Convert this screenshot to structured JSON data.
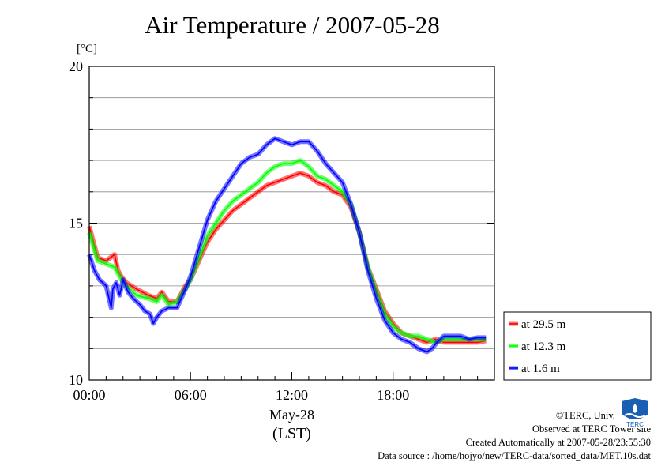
{
  "chart_data": {
    "type": "line",
    "title": "Air Temperature / 2007-05-28",
    "unit_label": "[°C]",
    "ylim": [
      10,
      20
    ],
    "xlim": [
      0,
      24
    ],
    "y_ticks": [
      10,
      15,
      20
    ],
    "y_minor_step": 1,
    "x_ticks": [
      {
        "x": 0,
        "label": "00:00"
      },
      {
        "x": 6,
        "label": "06:00"
      },
      {
        "x": 12,
        "label": "12:00"
      },
      {
        "x": 18,
        "label": "18:00"
      }
    ],
    "x_date_label": "May-28",
    "x_axis_label": "(LST)",
    "grid": "horizontal at every 1 °C",
    "legend_position": "right",
    "series": [
      {
        "name": "at 29.5 m",
        "color": "#ff0000",
        "x": [
          0,
          0.5,
          1,
          1.5,
          1.7,
          1.9,
          2.2,
          2.8,
          3.5,
          4,
          4.3,
          4.7,
          5.2,
          5.7,
          6,
          6.5,
          7,
          7.5,
          8,
          8.5,
          9,
          9.5,
          10,
          10.5,
          11,
          11.5,
          12,
          12.5,
          13,
          13.5,
          14,
          14.5,
          15,
          15.5,
          16,
          16.5,
          17,
          17.5,
          18,
          18.5,
          19,
          19.5,
          20,
          20.5,
          21,
          21.5,
          22,
          22.5,
          23,
          23.5
        ],
        "y": [
          14.9,
          13.9,
          13.8,
          14.0,
          13.5,
          13.3,
          13.1,
          12.9,
          12.7,
          12.6,
          12.8,
          12.5,
          12.5,
          13.0,
          13.2,
          13.8,
          14.4,
          14.8,
          15.1,
          15.4,
          15.6,
          15.8,
          16.0,
          16.2,
          16.3,
          16.4,
          16.5,
          16.6,
          16.5,
          16.3,
          16.2,
          16.0,
          15.9,
          15.5,
          14.7,
          13.6,
          12.9,
          12.2,
          11.8,
          11.5,
          11.4,
          11.3,
          11.2,
          11.3,
          11.2,
          11.2,
          11.2,
          11.2,
          11.2,
          11.25
        ]
      },
      {
        "name": "at 12.3 m",
        "color": "#00ff00",
        "x": [
          0,
          0.5,
          1,
          1.5,
          1.7,
          1.9,
          2.2,
          2.8,
          3.5,
          4,
          4.3,
          4.7,
          5.2,
          5.7,
          6,
          6.5,
          7,
          7.5,
          8,
          8.5,
          9,
          9.5,
          10,
          10.5,
          11,
          11.5,
          12,
          12.5,
          13,
          13.5,
          14,
          14.5,
          15,
          15.5,
          16,
          16.5,
          17,
          17.5,
          18,
          18.5,
          19,
          19.5,
          20,
          20.5,
          21,
          21.5,
          22,
          22.5,
          23,
          23.5
        ],
        "y": [
          14.7,
          13.8,
          13.7,
          13.6,
          13.4,
          13.2,
          13.0,
          12.7,
          12.6,
          12.5,
          12.7,
          12.4,
          12.5,
          12.9,
          13.2,
          13.9,
          14.6,
          15.0,
          15.4,
          15.7,
          15.9,
          16.1,
          16.3,
          16.6,
          16.8,
          16.9,
          16.9,
          17.0,
          16.8,
          16.5,
          16.4,
          16.2,
          16.0,
          15.6,
          14.7,
          13.6,
          12.8,
          12.1,
          11.7,
          11.5,
          11.4,
          11.4,
          11.3,
          11.2,
          11.3,
          11.3,
          11.3,
          11.3,
          11.3,
          11.3
        ]
      },
      {
        "name": "at 1.6 m",
        "color": "#0000ff",
        "x": [
          0,
          0.3,
          0.6,
          1,
          1.3,
          1.4,
          1.6,
          1.8,
          2,
          2.3,
          2.6,
          3,
          3.3,
          3.6,
          3.8,
          4,
          4.3,
          4.7,
          5.2,
          5.7,
          6,
          6.5,
          7,
          7.5,
          8,
          8.5,
          9,
          9.5,
          10,
          10.5,
          11,
          11.5,
          12,
          12.5,
          13,
          13.5,
          14,
          14.5,
          15,
          15.5,
          16,
          16.5,
          17,
          17.5,
          18,
          18.5,
          19,
          19.5,
          20,
          20.3,
          20.6,
          21,
          21.5,
          22,
          22.5,
          23,
          23.5
        ],
        "y": [
          14.0,
          13.5,
          13.2,
          13.0,
          12.3,
          12.9,
          13.1,
          12.7,
          13.2,
          12.8,
          12.6,
          12.4,
          12.2,
          12.1,
          11.8,
          12.0,
          12.2,
          12.3,
          12.3,
          12.9,
          13.3,
          14.2,
          15.1,
          15.7,
          16.1,
          16.5,
          16.9,
          17.1,
          17.2,
          17.5,
          17.7,
          17.6,
          17.5,
          17.6,
          17.6,
          17.3,
          16.9,
          16.6,
          16.3,
          15.6,
          14.7,
          13.5,
          12.6,
          11.9,
          11.5,
          11.3,
          11.2,
          11.0,
          10.9,
          11.0,
          11.2,
          11.4,
          11.4,
          11.4,
          11.3,
          11.35,
          11.35
        ]
      }
    ]
  },
  "credits": {
    "copyright": "©TERC, Univ. Tsukuba",
    "observed": "Observed at TERC Tower site",
    "created": "Created Automatically at 2007-05-28/23:55:30",
    "source": "Data source : /home/hojyo/new/TERC-data/sorted_data/MET.10s.dat"
  },
  "logo": {
    "text": "TERC",
    "color": "#1a5fb4"
  }
}
